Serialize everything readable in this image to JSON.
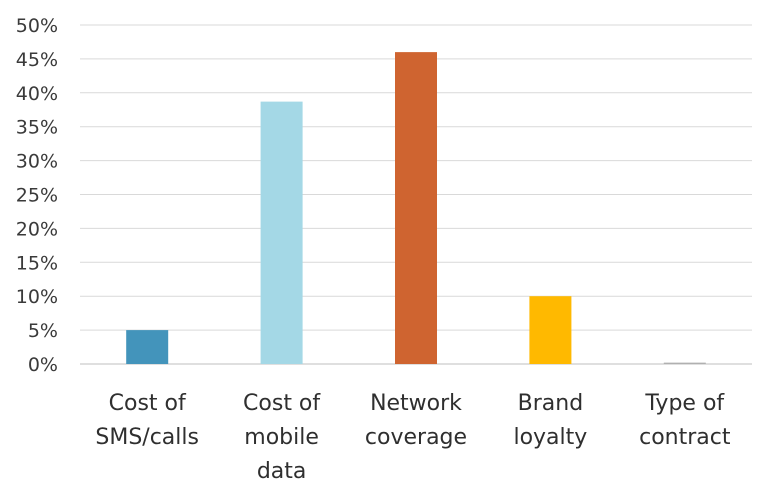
{
  "chart_data": {
    "type": "bar",
    "title": "",
    "xlabel": "",
    "ylabel": "",
    "categories": [
      [
        "Cost of",
        "SMS/calls"
      ],
      [
        "Cost of",
        "mobile",
        "data"
      ],
      [
        "Network",
        "coverage"
      ],
      [
        "Brand",
        "loyalty"
      ],
      [
        "Type of",
        "contract"
      ]
    ],
    "values": [
      5,
      38.7,
      46,
      10,
      0.2
    ],
    "colors": [
      "#4394bb",
      "#a4d8e6",
      "#cf6430",
      "#ffb900",
      "#b0b0b0"
    ],
    "ylim": [
      0,
      50
    ],
    "yticks": [
      0,
      5,
      10,
      15,
      20,
      25,
      30,
      35,
      40,
      45,
      50
    ],
    "ytick_labels": [
      "0%",
      "5%",
      "10%",
      "15%",
      "20%",
      "25%",
      "30%",
      "35%",
      "40%",
      "45%",
      "50%"
    ],
    "grid": true,
    "legend": "none"
  }
}
